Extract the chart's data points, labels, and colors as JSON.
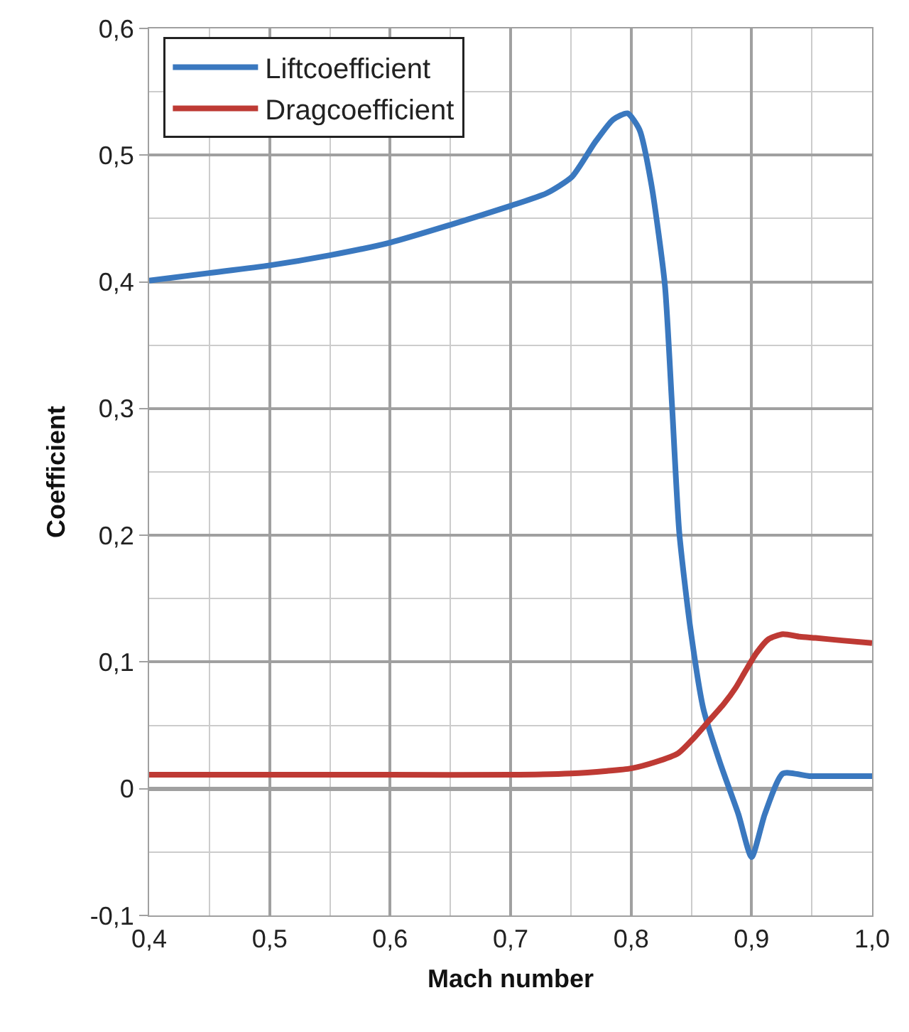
{
  "chart_data": {
    "type": "line",
    "xlabel": "Mach number",
    "ylabel": "Coefficient",
    "series": [
      {
        "name": "Liftcoefficient",
        "color": "#3a78bf",
        "x": [
          0.4,
          0.45,
          0.5,
          0.55,
          0.6,
          0.65,
          0.7,
          0.73,
          0.751,
          0.77,
          0.785,
          0.797,
          0.807,
          0.817,
          0.828,
          0.834,
          0.84,
          0.849,
          0.86,
          0.874,
          0.889,
          0.9,
          0.911,
          0.926,
          0.948,
          0.97,
          1.0
        ],
        "values": [
          0.401,
          0.407,
          0.413,
          0.421,
          0.431,
          0.445,
          0.46,
          0.47,
          0.483,
          0.51,
          0.528,
          0.533,
          0.52,
          0.476,
          0.398,
          0.302,
          0.202,
          0.128,
          0.063,
          0.02,
          -0.02,
          -0.054,
          -0.02,
          0.012,
          0.01,
          0.01,
          0.01
        ]
      },
      {
        "name": "Dragcoefficient",
        "color": "#be3a34",
        "x": [
          0.4,
          0.5,
          0.6,
          0.7,
          0.75,
          0.78,
          0.8,
          0.82,
          0.839,
          0.852,
          0.865,
          0.877,
          0.887,
          0.895,
          0.904,
          0.914,
          0.926,
          0.94,
          0.953,
          0.975,
          1.0
        ],
        "values": [
          0.011,
          0.011,
          0.011,
          0.011,
          0.012,
          0.014,
          0.016,
          0.021,
          0.028,
          0.04,
          0.054,
          0.067,
          0.08,
          0.093,
          0.107,
          0.118,
          0.122,
          0.12,
          0.119,
          0.117,
          0.115
        ]
      }
    ],
    "xlim": [
      0.4,
      1.0
    ],
    "ylim": [
      -0.1,
      0.6
    ],
    "xticks": [
      {
        "value": 0.4,
        "label": "0,4"
      },
      {
        "value": 0.5,
        "label": "0,5"
      },
      {
        "value": 0.6,
        "label": "0,6"
      },
      {
        "value": 0.7,
        "label": "0,7"
      },
      {
        "value": 0.8,
        "label": "0,8"
      },
      {
        "value": 0.9,
        "label": "0,9"
      },
      {
        "value": 1.0,
        "label": "1,0"
      }
    ],
    "yticks": [
      {
        "value": -0.1,
        "label": "-0,1"
      },
      0,
      {
        "value": 0.1,
        "label": "0,1"
      },
      {
        "value": 0.2,
        "label": "0,2"
      },
      {
        "value": 0.3,
        "label": "0,3"
      },
      {
        "value": 0.4,
        "label": "0,4"
      },
      {
        "value": 0.5,
        "label": "0,5"
      },
      {
        "value": 0.6,
        "label": "0,6"
      }
    ],
    "grid": true,
    "legend": "top left",
    "marker": "none",
    "line_style": "solid"
  }
}
